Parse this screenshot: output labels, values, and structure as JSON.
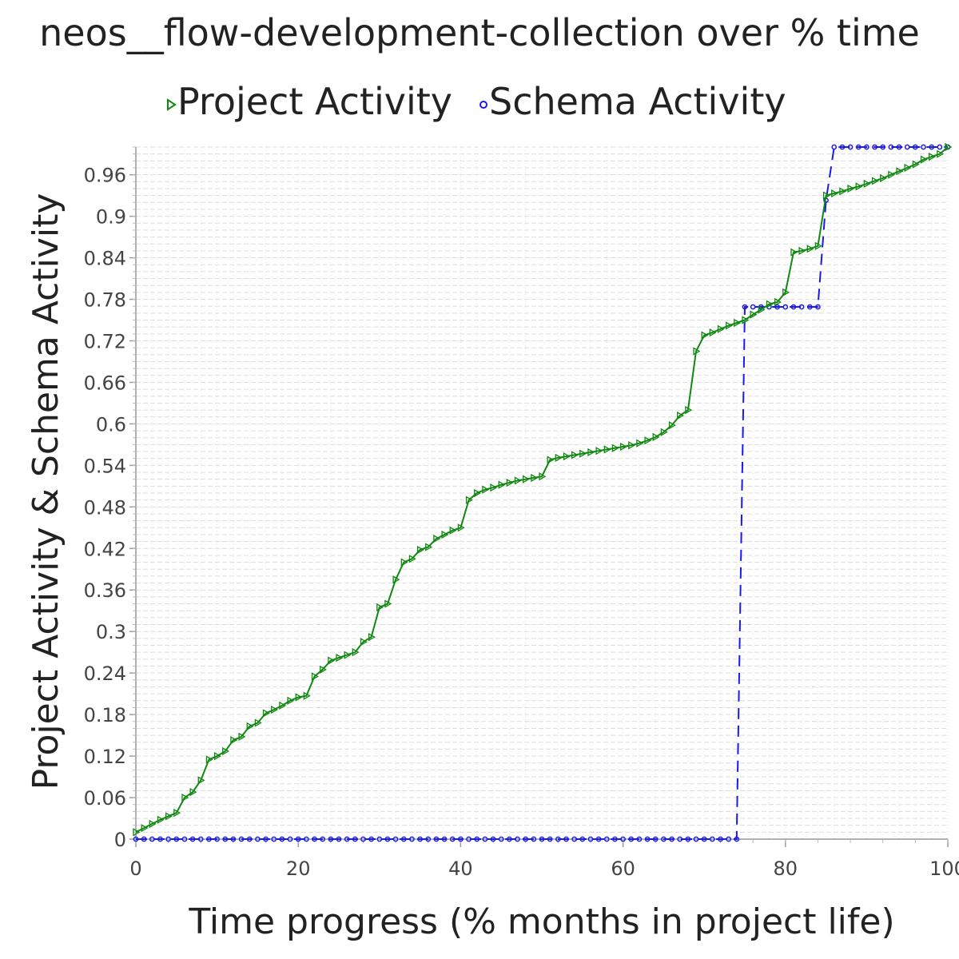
{
  "chart_data": {
    "type": "line",
    "title": "neos__flow-development-collection over % time",
    "xlabel": "Time progress (% months in project life)",
    "ylabel": "Project Activity & Schema Activity",
    "xlim": [
      0,
      100
    ],
    "ylim": [
      0,
      1.0
    ],
    "x_ticks": [
      0,
      20,
      40,
      60,
      80,
      100
    ],
    "x_tick_labels": [
      "0",
      "20",
      "40",
      "60",
      "80",
      "100"
    ],
    "y_ticks": [
      0,
      0.06,
      0.12,
      0.18,
      0.24,
      0.3,
      0.36,
      0.42,
      0.48,
      0.54,
      0.6,
      0.66,
      0.72,
      0.78,
      0.84,
      0.9,
      0.96
    ],
    "y_tick_labels": [
      "0",
      "0.06",
      "0.12",
      "0.18",
      "0.24",
      "0.3",
      "0.36",
      "0.42",
      "0.48",
      "0.54",
      "0.6",
      "0.66",
      "0.72",
      "0.78",
      "0.84",
      "0.9",
      "0.96"
    ],
    "grid": true,
    "legend_position": "top",
    "series": [
      {
        "name": "Project Activity",
        "color": "#118811",
        "marker": "triangle-right",
        "line_style": "solid",
        "points": [
          [
            0,
            0.01
          ],
          [
            1,
            0.016
          ],
          [
            2,
            0.022
          ],
          [
            3,
            0.028
          ],
          [
            4,
            0.033
          ],
          [
            5,
            0.038
          ],
          [
            6,
            0.06
          ],
          [
            7,
            0.068
          ],
          [
            8,
            0.085
          ],
          [
            9,
            0.115
          ],
          [
            10,
            0.12
          ],
          [
            11,
            0.127
          ],
          [
            12,
            0.143
          ],
          [
            13,
            0.148
          ],
          [
            14,
            0.163
          ],
          [
            15,
            0.168
          ],
          [
            16,
            0.182
          ],
          [
            17,
            0.187
          ],
          [
            18,
            0.193
          ],
          [
            19,
            0.2
          ],
          [
            20,
            0.205
          ],
          [
            21,
            0.207
          ],
          [
            22,
            0.235
          ],
          [
            23,
            0.245
          ],
          [
            24,
            0.258
          ],
          [
            25,
            0.262
          ],
          [
            26,
            0.266
          ],
          [
            27,
            0.27
          ],
          [
            28,
            0.285
          ],
          [
            29,
            0.292
          ],
          [
            30,
            0.335
          ],
          [
            31,
            0.34
          ],
          [
            32,
            0.375
          ],
          [
            33,
            0.4
          ],
          [
            34,
            0.405
          ],
          [
            35,
            0.418
          ],
          [
            36,
            0.422
          ],
          [
            37,
            0.434
          ],
          [
            38,
            0.44
          ],
          [
            39,
            0.446
          ],
          [
            40,
            0.45
          ],
          [
            41,
            0.49
          ],
          [
            42,
            0.5
          ],
          [
            43,
            0.505
          ],
          [
            44,
            0.508
          ],
          [
            45,
            0.512
          ],
          [
            46,
            0.515
          ],
          [
            47,
            0.518
          ],
          [
            48,
            0.52
          ],
          [
            49,
            0.522
          ],
          [
            50,
            0.524
          ],
          [
            51,
            0.548
          ],
          [
            52,
            0.551
          ],
          [
            53,
            0.553
          ],
          [
            54,
            0.555
          ],
          [
            55,
            0.557
          ],
          [
            56,
            0.559
          ],
          [
            57,
            0.561
          ],
          [
            58,
            0.563
          ],
          [
            59,
            0.565
          ],
          [
            60,
            0.567
          ],
          [
            61,
            0.569
          ],
          [
            62,
            0.572
          ],
          [
            63,
            0.576
          ],
          [
            64,
            0.581
          ],
          [
            65,
            0.588
          ],
          [
            66,
            0.598
          ],
          [
            67,
            0.612
          ],
          [
            68,
            0.62
          ],
          [
            69,
            0.705
          ],
          [
            70,
            0.728
          ],
          [
            71,
            0.732
          ],
          [
            72,
            0.737
          ],
          [
            73,
            0.742
          ],
          [
            74,
            0.746
          ],
          [
            75,
            0.75
          ],
          [
            76,
            0.758
          ],
          [
            77,
            0.765
          ],
          [
            78,
            0.773
          ],
          [
            79,
            0.776
          ],
          [
            80,
            0.79
          ],
          [
            81,
            0.848
          ],
          [
            82,
            0.85
          ],
          [
            83,
            0.853
          ],
          [
            84,
            0.857
          ],
          [
            85,
            0.93
          ],
          [
            86,
            0.933
          ],
          [
            87,
            0.936
          ],
          [
            88,
            0.94
          ],
          [
            89,
            0.943
          ],
          [
            90,
            0.947
          ],
          [
            91,
            0.951
          ],
          [
            92,
            0.955
          ],
          [
            93,
            0.96
          ],
          [
            94,
            0.965
          ],
          [
            95,
            0.97
          ],
          [
            96,
            0.975
          ],
          [
            97,
            0.982
          ],
          [
            98,
            0.986
          ],
          [
            99,
            0.99
          ],
          [
            100,
            1.0
          ]
        ]
      },
      {
        "name": "Schema Activity",
        "color": "#1a1aee",
        "marker": "circle",
        "line_style": "dashed",
        "points": [
          [
            0,
            0
          ],
          [
            1,
            0
          ],
          [
            2,
            0
          ],
          [
            3,
            0
          ],
          [
            4,
            0
          ],
          [
            5,
            0
          ],
          [
            6,
            0
          ],
          [
            7,
            0
          ],
          [
            8,
            0
          ],
          [
            9,
            0
          ],
          [
            10,
            0
          ],
          [
            11,
            0
          ],
          [
            12,
            0
          ],
          [
            13,
            0
          ],
          [
            14,
            0
          ],
          [
            15,
            0
          ],
          [
            16,
            0
          ],
          [
            17,
            0
          ],
          [
            18,
            0
          ],
          [
            19,
            0
          ],
          [
            20,
            0
          ],
          [
            21,
            0
          ],
          [
            22,
            0
          ],
          [
            23,
            0
          ],
          [
            24,
            0
          ],
          [
            25,
            0
          ],
          [
            26,
            0
          ],
          [
            27,
            0
          ],
          [
            28,
            0
          ],
          [
            29,
            0
          ],
          [
            30,
            0
          ],
          [
            31,
            0
          ],
          [
            32,
            0
          ],
          [
            33,
            0
          ],
          [
            34,
            0
          ],
          [
            35,
            0
          ],
          [
            36,
            0
          ],
          [
            37,
            0
          ],
          [
            38,
            0
          ],
          [
            39,
            0
          ],
          [
            40,
            0
          ],
          [
            41,
            0
          ],
          [
            42,
            0
          ],
          [
            43,
            0
          ],
          [
            44,
            0
          ],
          [
            45,
            0
          ],
          [
            46,
            0
          ],
          [
            47,
            0
          ],
          [
            48,
            0
          ],
          [
            49,
            0
          ],
          [
            50,
            0
          ],
          [
            51,
            0
          ],
          [
            52,
            0
          ],
          [
            53,
            0
          ],
          [
            54,
            0
          ],
          [
            55,
            0
          ],
          [
            56,
            0
          ],
          [
            57,
            0
          ],
          [
            58,
            0
          ],
          [
            59,
            0
          ],
          [
            60,
            0
          ],
          [
            61,
            0
          ],
          [
            62,
            0
          ],
          [
            63,
            0
          ],
          [
            64,
            0
          ],
          [
            65,
            0
          ],
          [
            66,
            0
          ],
          [
            67,
            0
          ],
          [
            68,
            0
          ],
          [
            69,
            0
          ],
          [
            70,
            0
          ],
          [
            71,
            0
          ],
          [
            72,
            0
          ],
          [
            73,
            0
          ],
          [
            74,
            0
          ],
          [
            75,
            0.769
          ],
          [
            76,
            0.769
          ],
          [
            77,
            0.769
          ],
          [
            78,
            0.769
          ],
          [
            79,
            0.769
          ],
          [
            80,
            0.769
          ],
          [
            81,
            0.769
          ],
          [
            82,
            0.769
          ],
          [
            83,
            0.769
          ],
          [
            84,
            0.769
          ],
          [
            85,
            0.923
          ],
          [
            86,
            1.0
          ],
          [
            87,
            1.0
          ],
          [
            88,
            1.0
          ],
          [
            89,
            1.0
          ],
          [
            90,
            1.0
          ],
          [
            91,
            1.0
          ],
          [
            92,
            1.0
          ],
          [
            93,
            1.0
          ],
          [
            94,
            1.0
          ],
          [
            95,
            1.0
          ],
          [
            96,
            1.0
          ],
          [
            97,
            1.0
          ],
          [
            98,
            1.0
          ],
          [
            99,
            1.0
          ],
          [
            100,
            1.0
          ]
        ]
      }
    ]
  }
}
